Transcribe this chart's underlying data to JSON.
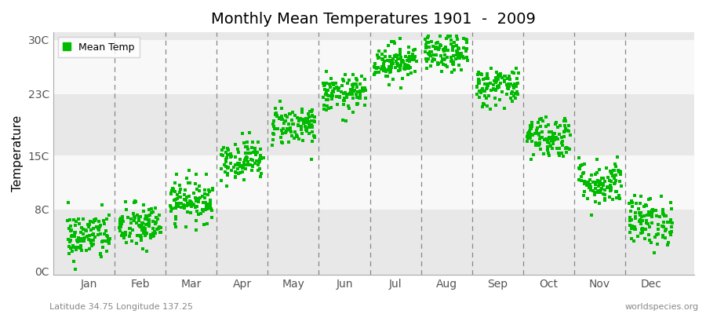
{
  "title": "Monthly Mean Temperatures 1901  -  2009",
  "ylabel": "Temperature",
  "subtitle": "Latitude 34.75 Longitude 137.25",
  "watermark": "worldspecies.org",
  "yticks": [
    0,
    8,
    15,
    23,
    30
  ],
  "ytick_labels": [
    "0C",
    "8C",
    "15C",
    "23C",
    "30C"
  ],
  "months": [
    "Jan",
    "Feb",
    "Mar",
    "Apr",
    "May",
    "Jun",
    "Jul",
    "Aug",
    "Sep",
    "Oct",
    "Nov",
    "Dec"
  ],
  "dot_color": "#00BB00",
  "fig_bg_color": "#FFFFFF",
  "plot_bg_color": "#F0F0F0",
  "band_color_light": "#F8F8F8",
  "band_color_dark": "#E8E8E8",
  "n_years": 109,
  "mean_temps": [
    4.5,
    5.8,
    9.2,
    14.5,
    19.0,
    23.0,
    27.2,
    28.2,
    24.0,
    17.5,
    11.5,
    6.5
  ],
  "std_temps": [
    1.6,
    1.5,
    1.4,
    1.3,
    1.3,
    1.2,
    1.2,
    1.2,
    1.3,
    1.4,
    1.5,
    1.6
  ],
  "ylim_min": -0.5,
  "ylim_max": 31.0,
  "xlim_min": 0.3,
  "xlim_max": 12.85
}
